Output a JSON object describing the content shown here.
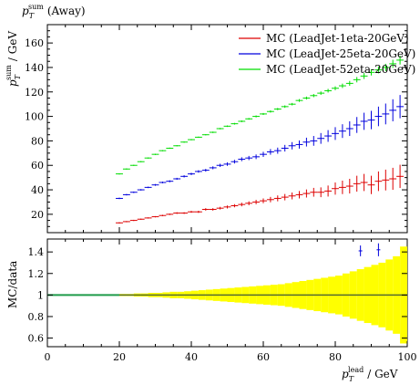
{
  "chart_data": [
    {
      "type": "scatter",
      "title_main": "p",
      "title_sup": "sum",
      "title_sub": "T",
      "title_suffix": "(Away)",
      "ylabel_main": "p",
      "ylabel_sup": "sum",
      "ylabel_sub": "T",
      "ylabel_suffix": "/ GeV",
      "xlim": [
        0,
        100
      ],
      "ylim": [
        5,
        175
      ],
      "yticks": [
        20,
        40,
        60,
        80,
        100,
        120,
        140,
        160
      ],
      "legend_position": "top-right",
      "series": [
        {
          "name": "MC (LeadJet-1eta-20GeV)",
          "color": "#dd0000",
          "x": [
            20,
            22,
            24,
            26,
            28,
            30,
            32,
            34,
            36,
            38,
            40,
            42,
            44,
            46,
            48,
            50,
            52,
            54,
            56,
            58,
            60,
            62,
            64,
            66,
            68,
            70,
            72,
            74,
            76,
            78,
            80,
            82,
            84,
            86,
            88,
            90,
            92,
            94,
            96,
            98
          ],
          "y": [
            13,
            14,
            15,
            16,
            17,
            18,
            19,
            20,
            21,
            21,
            22,
            22,
            24,
            24,
            25,
            26,
            27,
            28,
            29,
            30,
            31,
            32,
            33,
            34,
            35,
            36,
            37,
            38,
            38,
            39,
            41,
            42,
            43,
            45,
            46,
            44,
            47,
            48,
            49,
            51
          ],
          "err": [
            0.5,
            0.5,
            0.5,
            0.5,
            0.5,
            0.5,
            0.6,
            0.6,
            0.7,
            0.7,
            0.8,
            0.9,
            1,
            1,
            1.1,
            1.2,
            1.3,
            1.5,
            1.6,
            1.8,
            2,
            2.2,
            2.4,
            2.6,
            2.8,
            3,
            3.3,
            3.6,
            4,
            4.5,
            5,
            5.5,
            6,
            6.5,
            7,
            7.5,
            8,
            8.5,
            9,
            9.5
          ]
        },
        {
          "name": "MC (LeadJet-25eta-20GeV)",
          "color": "#0000dd",
          "x": [
            20,
            22,
            24,
            26,
            28,
            30,
            32,
            34,
            36,
            38,
            40,
            42,
            44,
            46,
            48,
            50,
            52,
            54,
            56,
            58,
            60,
            62,
            64,
            66,
            68,
            70,
            72,
            74,
            76,
            78,
            80,
            82,
            84,
            86,
            88,
            90,
            92,
            94,
            96,
            98
          ],
          "y": [
            33,
            36,
            38,
            40,
            42,
            44,
            46,
            47,
            49,
            51,
            53,
            55,
            56,
            58,
            60,
            61,
            63,
            65,
            66,
            67,
            69,
            71,
            72,
            74,
            76,
            77,
            79,
            80,
            82,
            84,
            86,
            88,
            90,
            93,
            96,
            97,
            100,
            102,
            105,
            108
          ],
          "err": [
            0.6,
            0.6,
            0.6,
            0.6,
            0.6,
            0.7,
            0.7,
            0.8,
            0.8,
            0.9,
            0.9,
            1,
            1.1,
            1.2,
            1.3,
            1.4,
            1.5,
            1.6,
            1.7,
            1.9,
            2.1,
            2.3,
            2.5,
            2.7,
            3,
            3.3,
            3.6,
            4,
            4.4,
            4.8,
            5.2,
            5.6,
            6,
            6.5,
            7,
            7.5,
            8,
            8.5,
            9,
            9.5
          ]
        },
        {
          "name": "MC (LeadJet-52eta-20GeV)",
          "color": "#00dd00",
          "x": [
            20,
            22,
            24,
            26,
            28,
            30,
            32,
            34,
            36,
            38,
            40,
            42,
            44,
            46,
            48,
            50,
            52,
            54,
            56,
            58,
            60,
            62,
            64,
            66,
            68,
            70,
            72,
            74,
            76,
            78,
            80,
            82,
            84,
            86,
            88,
            90,
            92,
            94,
            96,
            98
          ],
          "y": [
            53,
            57,
            60,
            63,
            66,
            69,
            72,
            74,
            76,
            79,
            81,
            83,
            85,
            87,
            90,
            92,
            94,
            96,
            98,
            100,
            102,
            104,
            106,
            108,
            110,
            113,
            115,
            117,
            119,
            121,
            123,
            125,
            127,
            130,
            133,
            136,
            138,
            140,
            143,
            146
          ],
          "err": [
            0.5,
            0.5,
            0.5,
            0.5,
            0.5,
            0.5,
            0.5,
            0.5,
            0.5,
            0.5,
            0.5,
            0.5,
            0.5,
            0.6,
            0.6,
            0.6,
            0.7,
            0.7,
            0.7,
            0.8,
            0.8,
            0.9,
            0.9,
            1,
            1,
            1.1,
            1.2,
            1.3,
            1.4,
            1.5,
            1.6,
            1.8,
            2,
            2.2,
            2.4,
            2.6,
            2.8,
            3,
            3.3,
            3.6
          ]
        }
      ]
    },
    {
      "type": "bar",
      "ylabel": "MC/data",
      "xlabel_main": "p",
      "xlabel_sup": "lead",
      "xlabel_sub": "T",
      "xlabel_suffix": "/ GeV",
      "xlim": [
        0,
        100
      ],
      "xticks": [
        0,
        20,
        40,
        60,
        80,
        100
      ],
      "ylim": [
        0.52,
        1.52
      ],
      "yticks": [
        0.6,
        0.8,
        1,
        1.2,
        1.4
      ],
      "band_color": "#ffff00",
      "reference_line_color": "#1e9b4a",
      "band_x": [
        20,
        22,
        24,
        26,
        28,
        30,
        32,
        34,
        36,
        38,
        40,
        42,
        44,
        46,
        48,
        50,
        52,
        54,
        56,
        58,
        60,
        62,
        64,
        66,
        68,
        70,
        72,
        74,
        76,
        78,
        80,
        82,
        84,
        86,
        88,
        90,
        92,
        94,
        96,
        98
      ],
      "band_halfwidth": [
        0.01,
        0.01,
        0.015,
        0.015,
        0.02,
        0.02,
        0.025,
        0.03,
        0.03,
        0.035,
        0.04,
        0.045,
        0.05,
        0.055,
        0.06,
        0.065,
        0.07,
        0.075,
        0.08,
        0.085,
        0.09,
        0.095,
        0.1,
        0.11,
        0.12,
        0.13,
        0.14,
        0.15,
        0.16,
        0.17,
        0.18,
        0.2,
        0.22,
        0.24,
        0.26,
        0.28,
        0.3,
        0.33,
        0.36,
        0.45
      ],
      "ratio_points": [
        {
          "x": 87,
          "y": 1.41,
          "err": 0.05,
          "color": "#0000dd"
        },
        {
          "x": 92,
          "y": 1.42,
          "err": 0.06,
          "color": "#0000dd"
        }
      ]
    }
  ]
}
